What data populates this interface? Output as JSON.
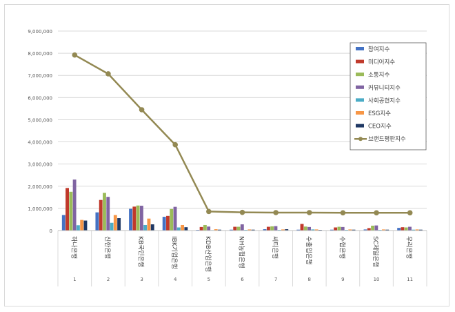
{
  "chart_data": {
    "type": "bar",
    "categories": [
      "하나은행",
      "신한은행",
      "KB국민은행",
      "IBK기업은행",
      "KDB산업은행",
      "NH농협은행",
      "씨티은행",
      "수출입은행",
      "수협은행",
      "SC제일은행",
      "우리은행"
    ],
    "category_numbers": [
      "1",
      "2",
      "3",
      "4",
      "5",
      "6",
      "7",
      "8",
      "9",
      "10",
      "11"
    ],
    "ylim": [
      0,
      9000000
    ],
    "yticks": [
      0,
      1000000,
      2000000,
      3000000,
      4000000,
      5000000,
      6000000,
      7000000,
      8000000,
      9000000
    ],
    "ytick_labels": [
      "0",
      "1,000,000",
      "2,000,000",
      "3,000,000",
      "4,000,000",
      "5,000,000",
      "6,000,000",
      "7,000,000",
      "8,000,000",
      "9,000,000"
    ],
    "grid": true,
    "legend_position": "top-right",
    "series": [
      {
        "name": "참여지수",
        "color": "#4472c4",
        "values": [
          700000,
          820000,
          980000,
          620000,
          30000,
          40000,
          60000,
          40000,
          40000,
          50000,
          120000
        ]
      },
      {
        "name": "미디어지수",
        "color": "#c0392b",
        "values": [
          1920000,
          1380000,
          1080000,
          660000,
          160000,
          170000,
          170000,
          300000,
          140000,
          110000,
          150000
        ]
      },
      {
        "name": "소통지수",
        "color": "#9bbb59",
        "values": [
          1750000,
          1700000,
          1130000,
          970000,
          250000,
          170000,
          190000,
          180000,
          170000,
          220000,
          140000
        ]
      },
      {
        "name": "커뮤니티지수",
        "color": "#8064a2",
        "values": [
          2300000,
          1520000,
          1120000,
          1070000,
          180000,
          280000,
          200000,
          160000,
          160000,
          230000,
          170000
        ]
      },
      {
        "name": "사회공헌지수",
        "color": "#4bacc6",
        "values": [
          240000,
          350000,
          250000,
          140000,
          20000,
          30000,
          30000,
          50000,
          30000,
          30000,
          40000
        ]
      },
      {
        "name": "ESG지수",
        "color": "#f79646",
        "values": [
          480000,
          700000,
          540000,
          250000,
          60000,
          50000,
          50000,
          50000,
          50000,
          50000,
          50000
        ]
      },
      {
        "name": "CEO지수",
        "color": "#1f3864",
        "values": [
          450000,
          560000,
          280000,
          150000,
          40000,
          40000,
          60000,
          30000,
          40000,
          40000,
          40000
        ]
      }
    ],
    "line_series": {
      "name": "브랜드평판지수",
      "color": "#938953",
      "values": [
        7920000,
        7070000,
        5450000,
        3870000,
        860000,
        820000,
        810000,
        810000,
        800000,
        800000,
        800000
      ]
    }
  }
}
